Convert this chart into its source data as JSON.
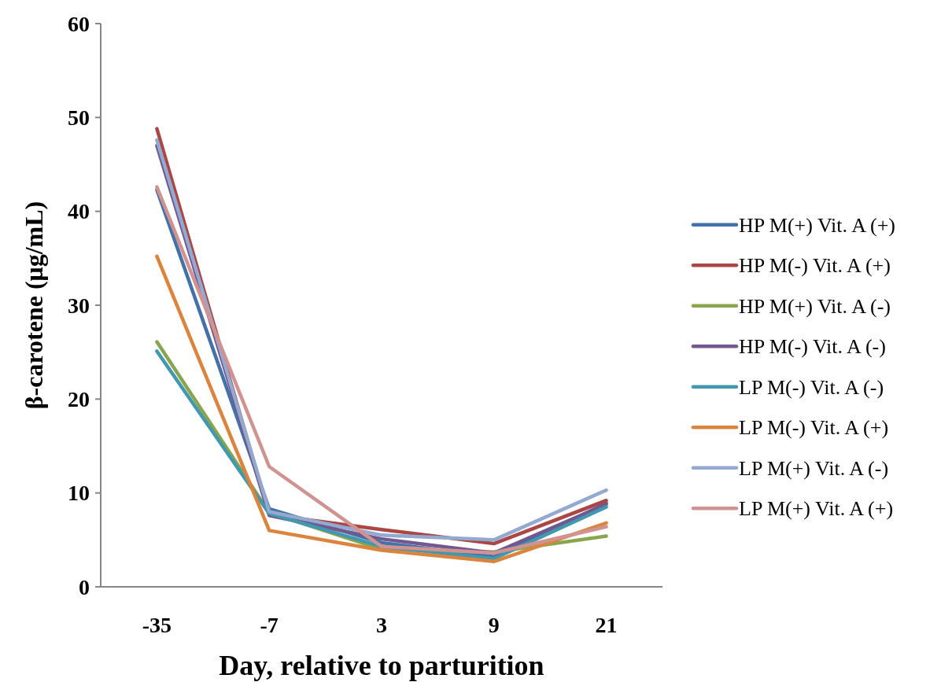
{
  "chart_data": {
    "type": "line",
    "xlabel": "Day, relative to parturition",
    "ylabel": "β-carotene (μg/mL)",
    "categories": [
      "-35",
      "-7",
      "3",
      "9",
      "21"
    ],
    "ylim": [
      0,
      60
    ],
    "yticks": [
      0,
      10,
      20,
      30,
      40,
      50,
      60
    ],
    "legend": "right",
    "grid": false,
    "marker": "none",
    "series": [
      {
        "name": "HP M(+) Vit. A (+)",
        "color": "#4472a8",
        "values": [
          42.3,
          8.3,
          4.7,
          3.2,
          8.9
        ]
      },
      {
        "name": "HP M(-) Vit. A (+)",
        "color": "#aa4643",
        "values": [
          48.8,
          7.7,
          6.1,
          4.6,
          9.2
        ]
      },
      {
        "name": "HP M(+) Vit. A (-)",
        "color": "#89a54e",
        "values": [
          26.1,
          7.9,
          4.0,
          3.7,
          5.4
        ]
      },
      {
        "name": "HP M(-) Vit. A (-)",
        "color": "#71588f",
        "values": [
          47.0,
          7.6,
          5.1,
          3.6,
          8.8
        ]
      },
      {
        "name": "LP M(-) Vit. A (-)",
        "color": "#4198af",
        "values": [
          25.1,
          7.8,
          4.3,
          3.0,
          8.5
        ]
      },
      {
        "name": "LP M(-) Vit. A (+)",
        "color": "#db843d",
        "values": [
          35.2,
          6.0,
          3.9,
          2.7,
          6.8
        ]
      },
      {
        "name": "LP M(+) Vit. A (-)",
        "color": "#93a9cf",
        "values": [
          47.6,
          8.0,
          5.5,
          5.0,
          10.3
        ]
      },
      {
        "name": "LP M(+) Vit. A (+)",
        "color": "#d19392",
        "values": [
          42.6,
          12.8,
          4.3,
          3.6,
          6.4
        ]
      }
    ]
  }
}
